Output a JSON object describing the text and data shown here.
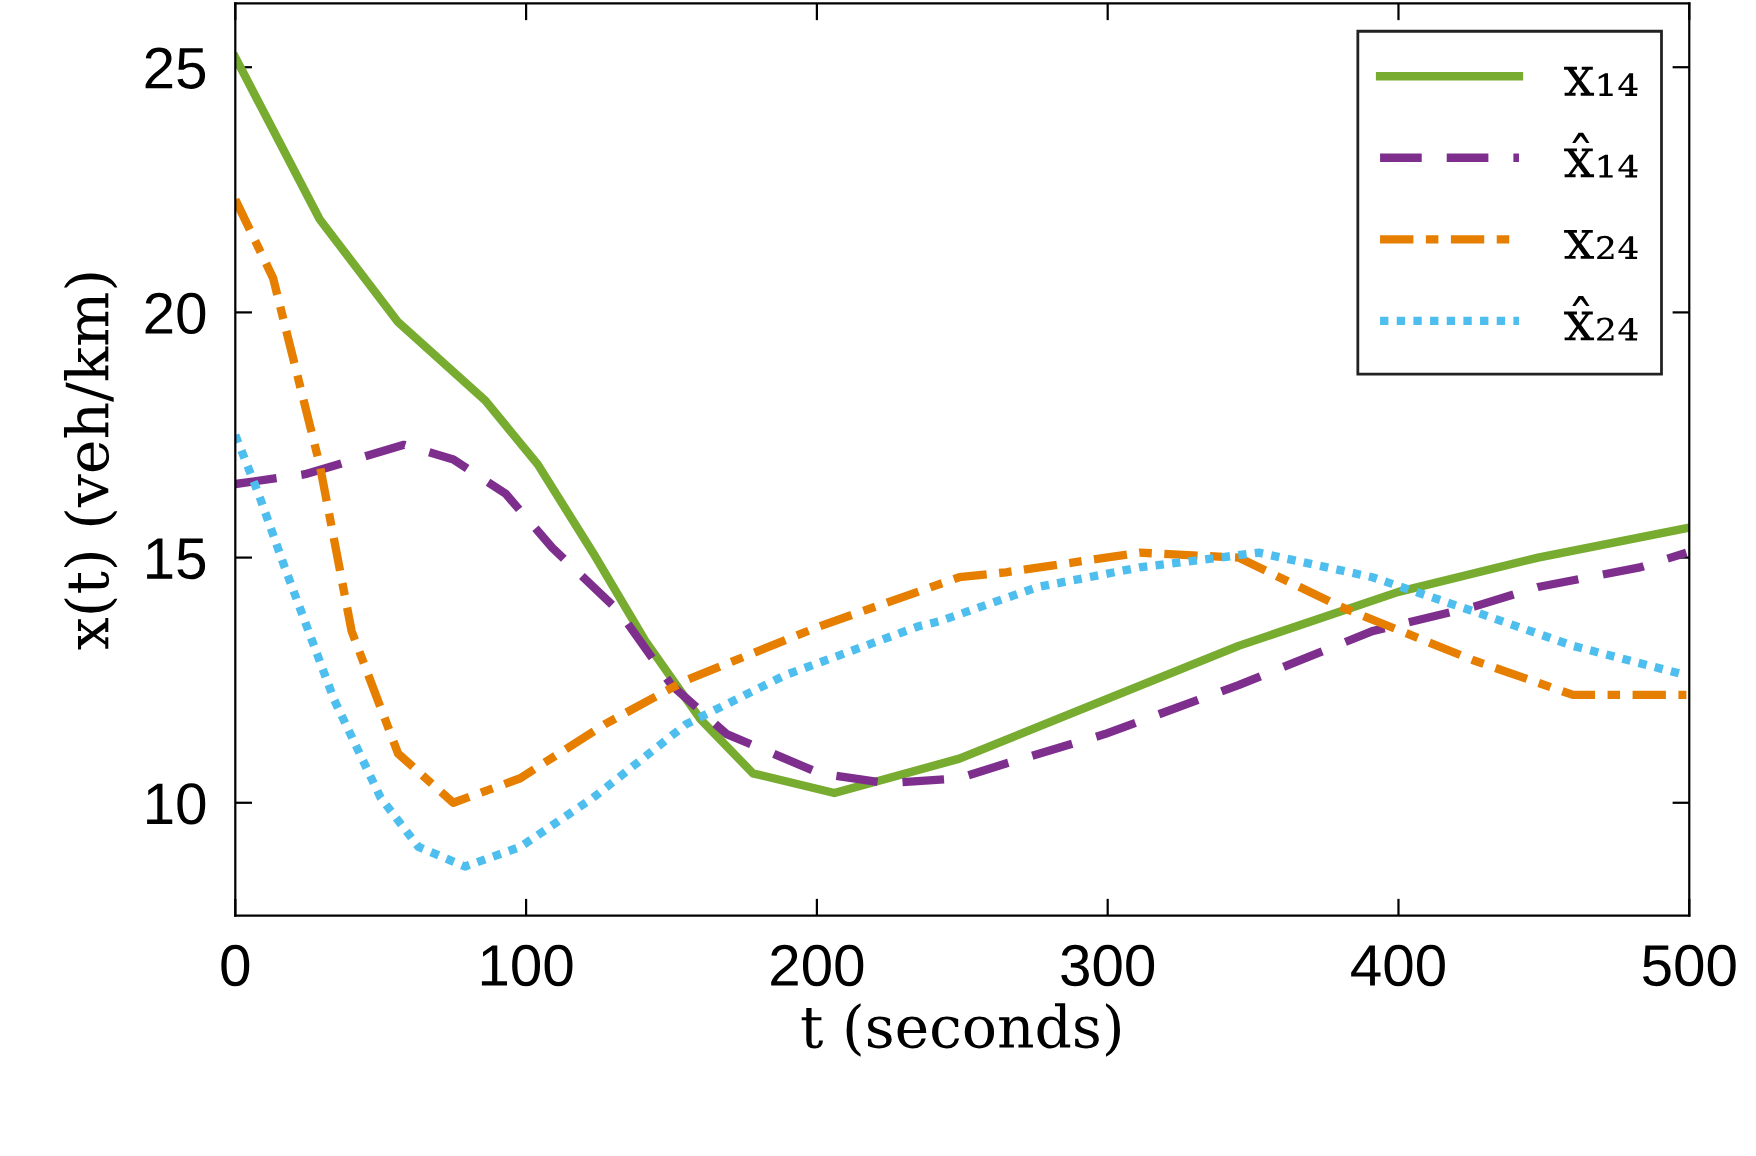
{
  "chart_data": {
    "type": "line",
    "xlabel": "t (seconds)",
    "ylabel": "x(t) (veh/km)",
    "xlim": [
      0,
      500
    ],
    "ylim": [
      7.7,
      26.3
    ],
    "xticks": [
      0,
      100,
      200,
      300,
      400,
      500
    ],
    "yticks": [
      10,
      15,
      20,
      25
    ],
    "grid": false,
    "legend": "top right",
    "marker": "none",
    "series": [
      {
        "name": "x₁₄",
        "color": "#77ac30",
        "line_style": "solid",
        "x": [
          0,
          29,
          56,
          86,
          104,
          123,
          141,
          160,
          178,
          206,
          249,
          299,
          345,
          400,
          448,
          499
        ],
        "values": [
          25.2,
          21.9,
          19.8,
          18.2,
          16.9,
          15.1,
          13.3,
          11.7,
          10.6,
          10.2,
          10.9,
          12.1,
          13.2,
          14.3,
          15.0,
          15.6
        ]
      },
      {
        "name": "x̂₁₄",
        "color": "#7e2f8e",
        "line_style": "dashed",
        "x": [
          0,
          24,
          58,
          75,
          93,
          109,
          132,
          150,
          169,
          201,
          224,
          249,
          265,
          299,
          345,
          391,
          426,
          448,
          483,
          499
        ],
        "values": [
          16.5,
          16.7,
          17.3,
          17.0,
          16.3,
          15.2,
          13.9,
          12.4,
          11.4,
          10.6,
          10.4,
          10.5,
          10.8,
          11.4,
          12.4,
          13.5,
          14.0,
          14.4,
          14.8,
          15.1
        ]
      },
      {
        "name": "x₂₄",
        "color": "#e67e00",
        "line_style": "dashdot",
        "x": [
          0,
          13,
          29,
          40,
          56,
          75,
          98,
          127,
          155,
          201,
          249,
          265,
          311,
          345,
          380,
          426,
          460,
          499
        ],
        "values": [
          22.3,
          20.7,
          16.9,
          13.5,
          11.0,
          10.0,
          10.5,
          11.6,
          12.5,
          13.6,
          14.6,
          14.7,
          15.1,
          15.0,
          14.0,
          12.9,
          12.2,
          12.2
        ]
      },
      {
        "name": "x̂₂₄",
        "color": "#4dbeee",
        "line_style": "dotted",
        "x": [
          0,
          8,
          17,
          34,
          50,
          63,
          79,
          98,
          123,
          155,
          189,
          212,
          235,
          242,
          276,
          311,
          352,
          391,
          426,
          460,
          499
        ],
        "values": [
          17.5,
          16.3,
          14.8,
          12.1,
          10.1,
          9.1,
          8.7,
          9.1,
          10.1,
          11.6,
          12.6,
          13.1,
          13.6,
          13.7,
          14.4,
          14.8,
          15.1,
          14.6,
          13.9,
          13.2,
          12.6
        ]
      }
    ]
  }
}
